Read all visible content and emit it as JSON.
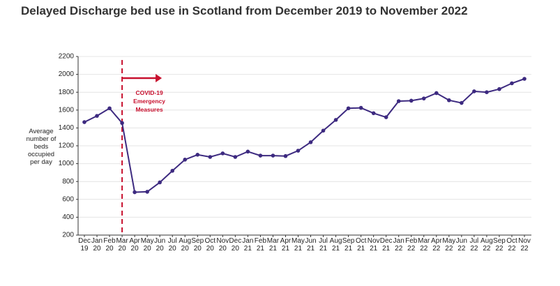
{
  "chart_data": {
    "type": "line",
    "title": "Delayed Discharge bed use in Scotland from December 2019 to November 2022",
    "y_label": "Average number of beds occupied per day",
    "categories": [
      "Dec 19",
      "Jan 20",
      "Feb 20",
      "Mar 20",
      "Apr 20",
      "May 20",
      "Jun 20",
      "Jul 20",
      "Aug 20",
      "Sep 20",
      "Oct 20",
      "Nov 20",
      "Dec 20",
      "Jan 21",
      "Feb 21",
      "Mar 21",
      "Apr 21",
      "May 21",
      "Jun 21",
      "Jul 21",
      "Aug 21",
      "Sep 21",
      "Oct 21",
      "Nov 21",
      "Dec 21",
      "Jan 22",
      "Feb 22",
      "Mar 22",
      "Apr 22",
      "May 22",
      "Jun 22",
      "Jul 22",
      "Aug 22",
      "Sep 22",
      "Oct 22",
      "Nov 22"
    ],
    "values": [
      1465,
      1535,
      1620,
      1455,
      680,
      685,
      790,
      920,
      1045,
      1100,
      1075,
      1115,
      1075,
      1135,
      1090,
      1090,
      1085,
      1145,
      1240,
      1370,
      1490,
      1620,
      1625,
      1565,
      1520,
      1700,
      1705,
      1730,
      1790,
      1710,
      1680,
      1810,
      1800,
      1835,
      1900,
      1950
    ],
    "color": "#3d2a80",
    "ylim": [
      200,
      2200
    ],
    "yticks": [
      200,
      400,
      600,
      800,
      1000,
      1200,
      1400,
      1600,
      1800,
      2000,
      2200
    ],
    "grid": true,
    "annotation": {
      "text": "COVID-19 Emergency Measures",
      "at": "Mar 20",
      "color": "#c8102e"
    }
  }
}
